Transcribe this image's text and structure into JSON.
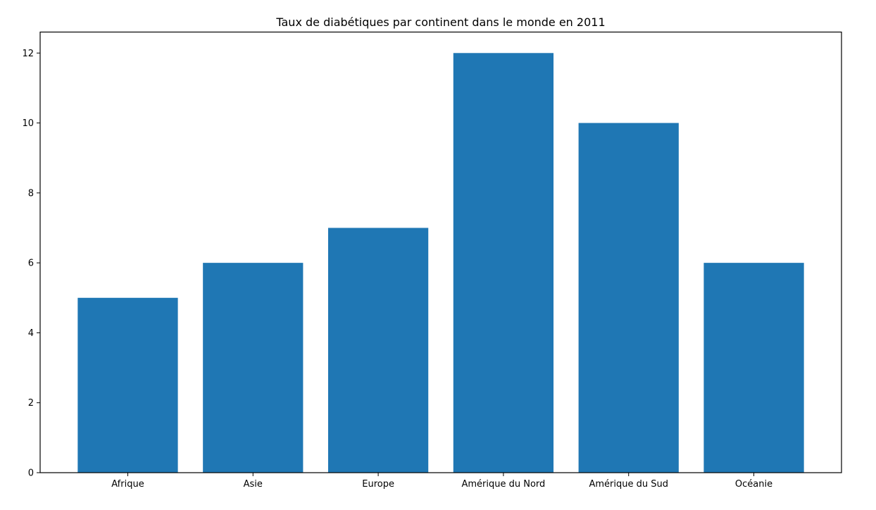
{
  "chart_data": {
    "type": "bar",
    "title": "Taux de diabétiques par continent dans le monde en 2011",
    "xlabel": "",
    "ylabel": "",
    "categories": [
      "Afrique",
      "Asie",
      "Europe",
      "Amérique du Nord",
      "Amérique du Sud",
      "Océanie"
    ],
    "values": [
      5,
      6,
      7,
      12,
      10,
      6
    ],
    "ylim": [
      0,
      12.6
    ],
    "yticks": [
      0,
      2,
      4,
      6,
      8,
      10,
      12
    ],
    "bar_color": "#1f77b4",
    "grid": false,
    "legend": "none"
  }
}
